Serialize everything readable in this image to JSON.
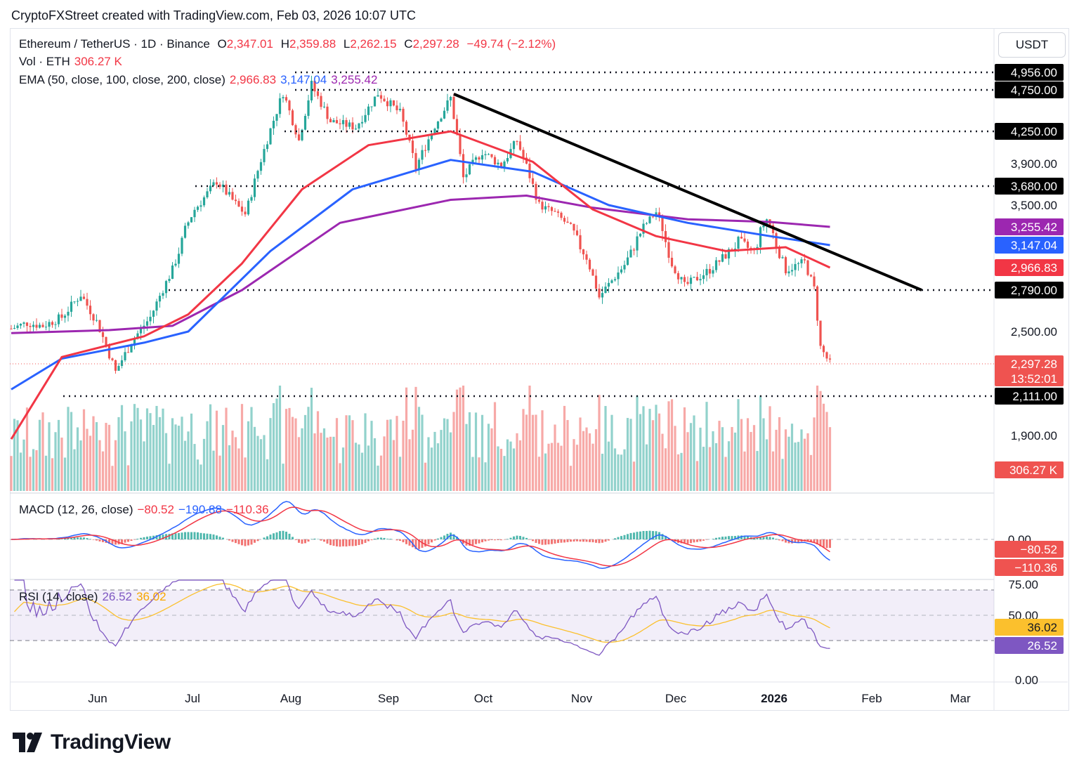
{
  "header": "CryptoFXStreet created with TradingView.com, Feb 03, 2026 10:07 UTC",
  "legend": {
    "symbol": "Ethereum / TetherUS · 1D · Binance",
    "o_label": "O",
    "o": "2,347.01",
    "h_label": "H",
    "h": "2,359.88",
    "l_label": "L",
    "l": "2,262.15",
    "c_label": "C",
    "c": "2,297.28",
    "change": "−49.74 (−2.12%)",
    "vol_label": "Vol · ETH",
    "vol": "306.27 K",
    "ema_label": "EMA (50, close, 100, close, 200, close)",
    "ema50": "2,966.83",
    "ema100": "3,147.04",
    "ema200": "3,255.42",
    "macd_label": "MACD (12, 26, close)",
    "macd_hist": "−80.52",
    "macd_line": "−190.88",
    "macd_signal": "−110.36",
    "rsi_label": "RSI (14, close)",
    "rsi": "26.52",
    "rsi_ma": "36.02"
  },
  "currency": "USDT",
  "colors": {
    "up": "#26a69a",
    "down": "#ef5350",
    "ema50": "#f23645",
    "ema100": "#2962ff",
    "ema200": "#9c27b0",
    "rsi": "#7e57c2",
    "rsi_ma": "#fbc02d",
    "trendline": "#000000"
  },
  "chart_data": {
    "type": "candlestick",
    "y_ticks": [
      "3,900.00",
      "3,500.00",
      "2,500.00",
      "1,900.00"
    ],
    "x_ticks": [
      "Jun",
      "Jul",
      "Aug",
      "Sep",
      "Oct",
      "Nov",
      "Dec",
      "2026",
      "Feb",
      "Mar"
    ],
    "horizontal_levels": [
      "4,956.00",
      "4,750.00",
      "4,250.00",
      "3,680.00",
      "2,790.00",
      "2,111.00"
    ],
    "price_labels": {
      "ema200": "3,255.42",
      "ema100": "3,147.04",
      "ema50": "2,966.83",
      "last": "2,297.28",
      "countdown": "13:52:01",
      "volume": "306.27 K"
    },
    "close_path": [
      [
        "2025-05-20",
        2520
      ],
      [
        "2025-05-25",
        2560
      ],
      [
        "2025-05-30",
        2540
      ],
      [
        "2025-06-05",
        2600
      ],
      [
        "2025-06-11",
        2760
      ],
      [
        "2025-06-16",
        2570
      ],
      [
        "2025-06-22",
        2250
      ],
      [
        "2025-06-27",
        2430
      ],
      [
        "2025-07-03",
        2600
      ],
      [
        "2025-07-10",
        2950
      ],
      [
        "2025-07-17",
        3450
      ],
      [
        "2025-07-24",
        3730
      ],
      [
        "2025-08-02",
        3400
      ],
      [
        "2025-08-08",
        4050
      ],
      [
        "2025-08-14",
        4720
      ],
      [
        "2025-08-19",
        4150
      ],
      [
        "2025-08-23",
        4810
      ],
      [
        "2025-08-29",
        4370
      ],
      [
        "2025-09-06",
        4300
      ],
      [
        "2025-09-13",
        4710
      ],
      [
        "2025-09-20",
        4470
      ],
      [
        "2025-09-25",
        3860
      ],
      [
        "2025-10-01",
        4320
      ],
      [
        "2025-10-06",
        4650
      ],
      [
        "2025-10-10",
        3760
      ],
      [
        "2025-10-16",
        4030
      ],
      [
        "2025-10-22",
        3880
      ],
      [
        "2025-10-27",
        4150
      ],
      [
        "2025-11-03",
        3500
      ],
      [
        "2025-11-08",
        3410
      ],
      [
        "2025-11-13",
        3250
      ],
      [
        "2025-11-18",
        3050
      ],
      [
        "2025-11-22",
        2740
      ],
      [
        "2025-11-30",
        2990
      ],
      [
        "2025-12-04",
        3180
      ],
      [
        "2025-12-10",
        3420
      ],
      [
        "2025-12-15",
        3000
      ],
      [
        "2025-12-19",
        2820
      ],
      [
        "2025-12-27",
        2950
      ],
      [
        "2026-01-05",
        3160
      ],
      [
        "2026-01-10",
        3100
      ],
      [
        "2026-01-14",
        3340
      ],
      [
        "2026-01-20",
        2950
      ],
      [
        "2026-01-26",
        3010
      ],
      [
        "2026-01-29",
        2800
      ],
      [
        "2026-01-31",
        2400
      ],
      [
        "2026-02-03",
        2297
      ]
    ],
    "ema50_path": [
      [
        "2025-05-20",
        1880
      ],
      [
        "2025-06-05",
        2340
      ],
      [
        "2025-07-01",
        2470
      ],
      [
        "2025-07-15",
        2620
      ],
      [
        "2025-08-01",
        3000
      ],
      [
        "2025-08-20",
        3650
      ],
      [
        "2025-09-10",
        4100
      ],
      [
        "2025-10-06",
        4250
      ],
      [
        "2025-11-01",
        3920
      ],
      [
        "2025-11-20",
        3450
      ],
      [
        "2025-12-10",
        3200
      ],
      [
        "2026-01-01",
        3100
      ],
      [
        "2026-01-20",
        3130
      ],
      [
        "2026-02-03",
        2967
      ]
    ],
    "ema100_path": [
      [
        "2025-05-20",
        2150
      ],
      [
        "2025-06-05",
        2330
      ],
      [
        "2025-07-01",
        2430
      ],
      [
        "2025-07-15",
        2500
      ],
      [
        "2025-08-10",
        3100
      ],
      [
        "2025-09-05",
        3650
      ],
      [
        "2025-10-06",
        3940
      ],
      [
        "2025-11-01",
        3820
      ],
      [
        "2025-11-25",
        3500
      ],
      [
        "2025-12-20",
        3300
      ],
      [
        "2026-01-15",
        3200
      ],
      [
        "2026-02-03",
        3147
      ]
    ],
    "ema200_path": [
      [
        "2025-05-20",
        2490
      ],
      [
        "2025-06-20",
        2510
      ],
      [
        "2025-07-10",
        2540
      ],
      [
        "2025-08-01",
        2790
      ],
      [
        "2025-09-01",
        3300
      ],
      [
        "2025-10-06",
        3550
      ],
      [
        "2025-10-30",
        3590
      ],
      [
        "2025-11-20",
        3470
      ],
      [
        "2025-12-20",
        3340
      ],
      [
        "2026-01-15",
        3310
      ],
      [
        "2026-02-03",
        3255
      ]
    ],
    "trendline": [
      [
        "2025-10-07",
        4700
      ],
      [
        "2026-03-04",
        2790
      ]
    ],
    "macd": {
      "ticks": [
        "0.00"
      ],
      "labels": {
        "hist": "−80.52",
        "signal": "−110.36"
      }
    },
    "rsi": {
      "ticks": [
        "75.00",
        "50.00",
        "0.00"
      ],
      "labels": {
        "ma": "36.02",
        "rsi": "26.52"
      }
    }
  }
}
